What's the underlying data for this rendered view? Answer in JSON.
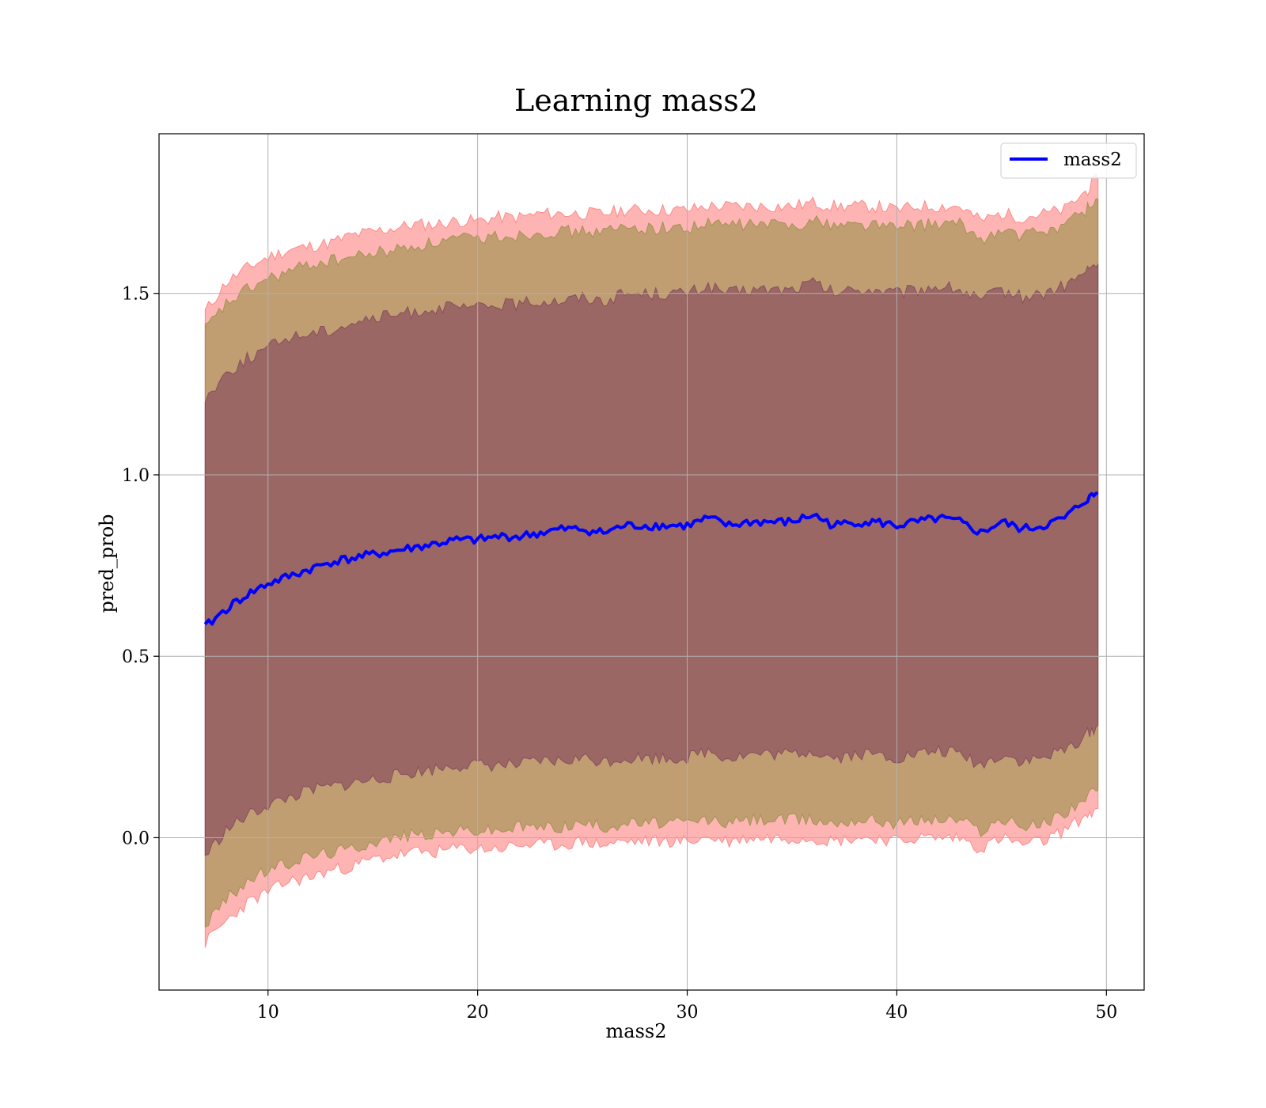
{
  "chart_data": {
    "type": "line",
    "title": "Learning mass2",
    "xlabel": "mass2",
    "ylabel": "pred_prob",
    "xlim": [
      4.8,
      51.8
    ],
    "ylim": [
      -0.42,
      1.94
    ],
    "xticks": [
      10,
      20,
      30,
      40,
      50
    ],
    "yticks": [
      0.0,
      0.5,
      1.0,
      1.5
    ],
    "xtick_labels": [
      "10",
      "20",
      "30",
      "40",
      "50"
    ],
    "ytick_labels": [
      "0.0",
      "0.5",
      "1.0",
      "1.5"
    ],
    "grid": true,
    "legend": {
      "position": "top-right",
      "entries": [
        "mass2"
      ]
    },
    "series": [
      {
        "name": "mass2",
        "color": "#0000ff",
        "x": [
          7,
          8,
          9,
          10,
          11,
          12,
          13,
          14,
          15,
          16,
          17,
          18,
          19,
          20,
          21,
          22,
          23,
          24,
          25,
          26,
          27,
          28,
          29,
          30,
          31,
          32,
          33,
          34,
          35,
          36,
          37,
          38,
          39,
          40,
          41,
          42,
          43,
          44,
          45,
          46,
          47,
          48,
          49,
          49.6
        ],
        "y": [
          0.58,
          0.63,
          0.67,
          0.7,
          0.72,
          0.74,
          0.76,
          0.77,
          0.78,
          0.79,
          0.8,
          0.81,
          0.82,
          0.82,
          0.83,
          0.83,
          0.84,
          0.85,
          0.85,
          0.84,
          0.86,
          0.86,
          0.86,
          0.86,
          0.88,
          0.86,
          0.87,
          0.87,
          0.87,
          0.89,
          0.86,
          0.87,
          0.87,
          0.86,
          0.87,
          0.88,
          0.87,
          0.84,
          0.87,
          0.85,
          0.86,
          0.88,
          0.93,
          0.95
        ]
      }
    ],
    "bands": [
      {
        "color": "#ff6a6a",
        "x": [
          7,
          8,
          9,
          10,
          11,
          12,
          13,
          14,
          15,
          16,
          17,
          18,
          19,
          20,
          21,
          22,
          23,
          24,
          25,
          26,
          27,
          28,
          29,
          30,
          31,
          32,
          33,
          34,
          35,
          36,
          37,
          38,
          39,
          40,
          41,
          42,
          43,
          44,
          45,
          46,
          47,
          48,
          49,
          49.6
        ],
        "upper": [
          1.45,
          1.53,
          1.57,
          1.6,
          1.62,
          1.63,
          1.64,
          1.66,
          1.67,
          1.68,
          1.69,
          1.69,
          1.7,
          1.7,
          1.71,
          1.71,
          1.72,
          1.72,
          1.72,
          1.72,
          1.73,
          1.73,
          1.73,
          1.73,
          1.74,
          1.74,
          1.74,
          1.74,
          1.74,
          1.75,
          1.74,
          1.74,
          1.74,
          1.73,
          1.74,
          1.74,
          1.74,
          1.7,
          1.72,
          1.71,
          1.72,
          1.73,
          1.78,
          1.82
        ],
        "lower": [
          -0.29,
          -0.23,
          -0.18,
          -0.15,
          -0.12,
          -0.11,
          -0.09,
          -0.08,
          -0.06,
          -0.05,
          -0.04,
          -0.04,
          -0.03,
          -0.03,
          -0.03,
          -0.02,
          -0.02,
          -0.02,
          -0.01,
          -0.02,
          -0.01,
          -0.01,
          -0.01,
          -0.01,
          0.0,
          -0.01,
          0.0,
          0.0,
          0.0,
          0.0,
          -0.01,
          0.0,
          0.0,
          -0.01,
          0.0,
          0.0,
          0.0,
          -0.03,
          0.0,
          -0.02,
          -0.01,
          0.02,
          0.06,
          0.08
        ]
      },
      {
        "color": "#8c8c3c",
        "x": [
          7,
          8,
          9,
          10,
          11,
          12,
          13,
          14,
          15,
          16,
          17,
          18,
          19,
          20,
          21,
          22,
          23,
          24,
          25,
          26,
          27,
          28,
          29,
          30,
          31,
          32,
          33,
          34,
          35,
          36,
          37,
          38,
          39,
          40,
          41,
          42,
          43,
          44,
          45,
          46,
          47,
          48,
          49,
          49.6
        ],
        "upper": [
          1.4,
          1.47,
          1.51,
          1.54,
          1.56,
          1.58,
          1.59,
          1.6,
          1.61,
          1.62,
          1.63,
          1.64,
          1.65,
          1.65,
          1.66,
          1.66,
          1.67,
          1.67,
          1.67,
          1.67,
          1.68,
          1.68,
          1.68,
          1.68,
          1.69,
          1.69,
          1.69,
          1.69,
          1.69,
          1.7,
          1.69,
          1.69,
          1.69,
          1.68,
          1.69,
          1.69,
          1.69,
          1.65,
          1.67,
          1.66,
          1.67,
          1.69,
          1.73,
          1.76
        ],
        "lower": [
          -0.24,
          -0.17,
          -0.12,
          -0.09,
          -0.07,
          -0.05,
          -0.04,
          -0.03,
          -0.01,
          0.0,
          0.01,
          0.01,
          0.02,
          0.02,
          0.02,
          0.03,
          0.03,
          0.03,
          0.04,
          0.03,
          0.04,
          0.04,
          0.04,
          0.04,
          0.05,
          0.04,
          0.05,
          0.05,
          0.05,
          0.05,
          0.04,
          0.05,
          0.05,
          0.04,
          0.05,
          0.05,
          0.05,
          0.02,
          0.05,
          0.03,
          0.04,
          0.07,
          0.11,
          0.13
        ]
      },
      {
        "color": "#7a3a5a",
        "x": [
          7,
          8,
          9,
          10,
          11,
          12,
          13,
          14,
          15,
          16,
          17,
          18,
          19,
          20,
          21,
          22,
          23,
          24,
          25,
          26,
          27,
          28,
          29,
          30,
          31,
          32,
          33,
          34,
          35,
          36,
          37,
          38,
          39,
          40,
          41,
          42,
          43,
          44,
          45,
          46,
          47,
          48,
          49,
          49.6
        ],
        "upper": [
          1.21,
          1.28,
          1.32,
          1.35,
          1.38,
          1.39,
          1.4,
          1.42,
          1.43,
          1.44,
          1.45,
          1.46,
          1.46,
          1.46,
          1.47,
          1.47,
          1.48,
          1.48,
          1.49,
          1.48,
          1.5,
          1.5,
          1.5,
          1.5,
          1.52,
          1.5,
          1.51,
          1.51,
          1.51,
          1.53,
          1.5,
          1.51,
          1.51,
          1.5,
          1.51,
          1.52,
          1.51,
          1.48,
          1.51,
          1.49,
          1.5,
          1.52,
          1.56,
          1.58
        ],
        "lower": [
          -0.05,
          0.02,
          0.06,
          0.09,
          0.11,
          0.13,
          0.14,
          0.15,
          0.16,
          0.17,
          0.18,
          0.19,
          0.2,
          0.2,
          0.2,
          0.2,
          0.21,
          0.21,
          0.22,
          0.21,
          0.22,
          0.22,
          0.22,
          0.22,
          0.24,
          0.22,
          0.23,
          0.23,
          0.23,
          0.24,
          0.22,
          0.23,
          0.23,
          0.22,
          0.23,
          0.24,
          0.23,
          0.2,
          0.23,
          0.21,
          0.22,
          0.24,
          0.28,
          0.31
        ]
      }
    ]
  }
}
